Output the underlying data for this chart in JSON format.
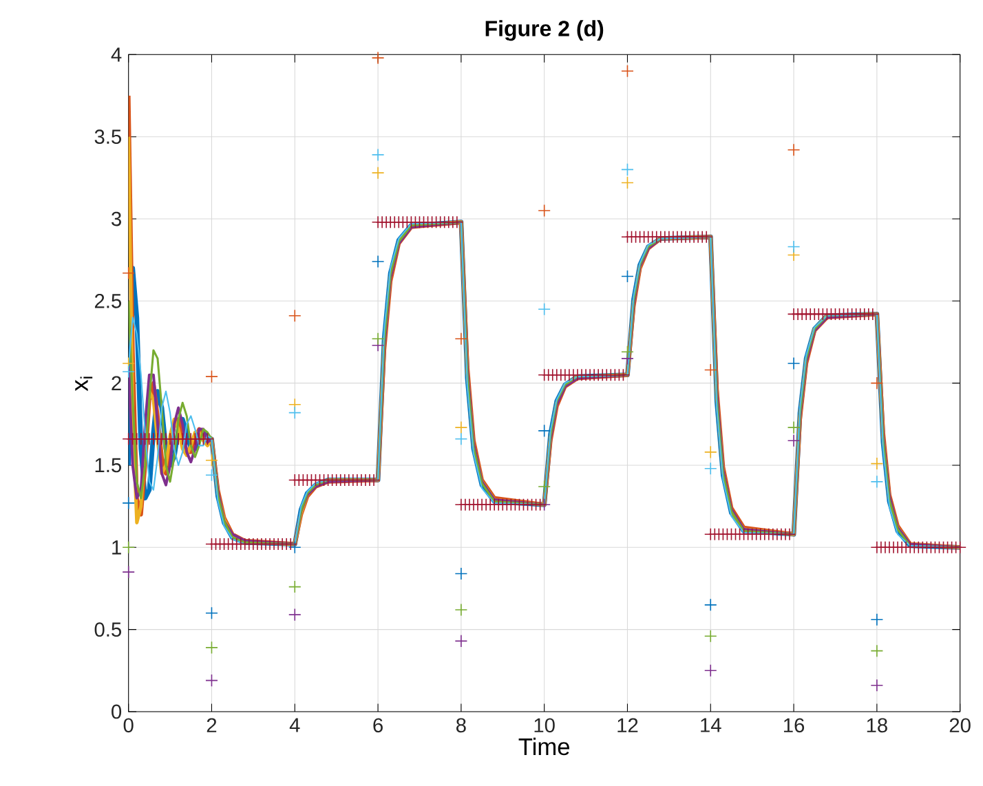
{
  "chart_data": {
    "type": "line",
    "title": "Figure 2 (d)",
    "xlabel": "Time",
    "ylabel": "x$_{i}$",
    "xlim": [
      0,
      20
    ],
    "ylim": [
      0,
      4
    ],
    "xticks": [
      0,
      2,
      4,
      6,
      8,
      10,
      12,
      14,
      16,
      18,
      20
    ],
    "yticks": [
      0,
      0.5,
      1,
      1.5,
      2,
      2.5,
      3,
      3.5,
      4
    ],
    "grid": true,
    "series": [
      {
        "type": "line",
        "marker": "none",
        "color": "#0072bd",
        "x": [
          0,
          0.1,
          0.2,
          0.3,
          0.4,
          0.5,
          0.6,
          0.7,
          0.8,
          0.9,
          1,
          1.1,
          1.2,
          1.3,
          1.4,
          1.5,
          1.6,
          1.7,
          1.8,
          1.9,
          2,
          2.15,
          2.3,
          2.5,
          2.8,
          4,
          4.15,
          4.3,
          4.5,
          4.8,
          6,
          6.15,
          6.3,
          6.5,
          6.8,
          8,
          8.15,
          8.3,
          8.5,
          8.8,
          10,
          10.15,
          10.3,
          10.5,
          10.8,
          12,
          12.15,
          12.3,
          12.5,
          12.8,
          14,
          14.15,
          14.3,
          14.5,
          14.8,
          16,
          16.15,
          16.3,
          16.5,
          16.8,
          18,
          18.15,
          18.3,
          18.5,
          18.8,
          20
        ],
        "values": [
          1.5,
          2.7,
          2.4,
          1.6,
          1.3,
          1.35,
          1.7,
          1.95,
          1.85,
          1.6,
          1.5,
          1.55,
          1.72,
          1.78,
          1.7,
          1.6,
          1.6,
          1.68,
          1.7,
          1.67,
          1.66,
          1.31,
          1.15,
          1.06,
          1.03,
          1.02,
          1.23,
          1.33,
          1.38,
          1.41,
          1.41,
          2.27,
          2.67,
          2.87,
          2.96,
          2.98,
          2.03,
          1.6,
          1.38,
          1.28,
          1.26,
          1.69,
          1.89,
          1.99,
          2.04,
          2.05,
          2.51,
          2.72,
          2.83,
          2.88,
          2.89,
          1.89,
          1.44,
          1.21,
          1.1,
          1.08,
          1.82,
          2.15,
          2.33,
          2.41,
          2.42,
          1.64,
          1.28,
          1.1,
          1.01,
          1.0
        ]
      },
      {
        "marker": "none",
        "color": "#d95319",
        "x": [
          0,
          0.1,
          0.2,
          0.3,
          0.4,
          0.5,
          0.6,
          0.7,
          0.8,
          0.9,
          1,
          1.1,
          1.2,
          1.3,
          1.4,
          1.5,
          1.6,
          1.7,
          1.8,
          1.9,
          2,
          2.15,
          2.3,
          2.5,
          2.8,
          4,
          4.15,
          4.3,
          4.5,
          4.8,
          6,
          6.15,
          6.3,
          6.5,
          6.8,
          8,
          8.15,
          8.3,
          8.5,
          8.8,
          10,
          10.15,
          10.3,
          10.5,
          10.8,
          12,
          12.15,
          12.3,
          12.5,
          12.8,
          14,
          14.15,
          14.3,
          14.5,
          14.8,
          16,
          16.15,
          16.3,
          16.5,
          16.8,
          18,
          18.15,
          18.3,
          18.5,
          18.8,
          20
        ],
        "values": [
          3.75,
          2.2,
          1.3,
          1.2,
          1.5,
          1.9,
          2.0,
          1.8,
          1.55,
          1.45,
          1.58,
          1.75,
          1.78,
          1.68,
          1.58,
          1.58,
          1.66,
          1.72,
          1.68,
          1.63,
          1.66,
          1.35,
          1.18,
          1.08,
          1.04,
          1.02,
          1.2,
          1.31,
          1.37,
          1.4,
          1.41,
          2.2,
          2.62,
          2.85,
          2.95,
          2.98,
          2.1,
          1.65,
          1.41,
          1.3,
          1.26,
          1.65,
          1.86,
          1.98,
          2.03,
          2.05,
          2.47,
          2.7,
          2.82,
          2.88,
          2.89,
          1.96,
          1.49,
          1.24,
          1.12,
          1.08,
          1.78,
          2.12,
          2.32,
          2.4,
          2.42,
          1.7,
          1.32,
          1.13,
          1.02,
          1.0
        ]
      },
      {
        "marker": "none",
        "color": "#edb120",
        "x": [
          0,
          0.1,
          0.2,
          0.3,
          0.4,
          0.5,
          0.6,
          0.7,
          0.8,
          0.9,
          1,
          1.1,
          1.2,
          1.3,
          1.4,
          1.5,
          1.6,
          1.7,
          1.8,
          1.9,
          2,
          2.15,
          2.3,
          2.5,
          2.8,
          4,
          4.15,
          4.3,
          4.5,
          4.8,
          6,
          6.15,
          6.3,
          6.5,
          6.8,
          8,
          8.15,
          8.3,
          8.5,
          8.8,
          10,
          10.15,
          10.3,
          10.5,
          10.8,
          12,
          12.15,
          12.3,
          12.5,
          12.8,
          14,
          14.15,
          14.3,
          14.5,
          14.8,
          16,
          16.15,
          16.3,
          16.5,
          16.8,
          18,
          18.15,
          18.3,
          18.5,
          18.8,
          20
        ],
        "values": [
          3.5,
          1.8,
          1.15,
          1.25,
          1.65,
          1.95,
          1.9,
          1.65,
          1.45,
          1.5,
          1.68,
          1.78,
          1.72,
          1.6,
          1.56,
          1.62,
          1.7,
          1.7,
          1.65,
          1.62,
          1.66,
          1.33,
          1.17,
          1.07,
          1.03,
          1.02,
          1.21,
          1.32,
          1.38,
          1.41,
          1.41,
          2.24,
          2.65,
          2.86,
          2.96,
          2.98,
          2.06,
          1.62,
          1.4,
          1.29,
          1.26,
          1.67,
          1.88,
          1.99,
          2.04,
          2.05,
          2.49,
          2.71,
          2.83,
          2.88,
          2.89,
          1.92,
          1.46,
          1.22,
          1.11,
          1.08,
          1.8,
          2.14,
          2.33,
          2.41,
          2.42,
          1.67,
          1.3,
          1.12,
          1.02,
          1.0
        ]
      },
      {
        "marker": "none",
        "color": "#7e2f8e",
        "x": [
          0,
          0.1,
          0.2,
          0.3,
          0.4,
          0.5,
          0.6,
          0.7,
          0.8,
          0.9,
          1,
          1.1,
          1.2,
          1.3,
          1.4,
          1.5,
          1.6,
          1.7,
          1.8,
          1.9,
          2,
          2.15,
          2.3,
          2.5,
          2.8,
          4,
          4.15,
          4.3,
          4.5,
          4.8,
          6,
          6.15,
          6.3,
          6.5,
          6.8,
          8,
          8.15,
          8.3,
          8.5,
          8.8,
          10,
          10.15,
          10.3,
          10.5,
          10.8,
          12,
          12.15,
          12.3,
          12.5,
          12.8,
          14,
          14.15,
          14.3,
          14.5,
          14.8,
          16,
          16.15,
          16.3,
          16.5,
          16.8,
          18,
          18.15,
          18.3,
          18.5,
          18.8,
          20
        ],
        "values": [
          2.1,
          1.5,
          1.3,
          1.35,
          1.75,
          2.05,
          2.05,
          1.75,
          1.45,
          1.38,
          1.5,
          1.75,
          1.85,
          1.75,
          1.58,
          1.52,
          1.6,
          1.72,
          1.72,
          1.64,
          1.66,
          1.34,
          1.16,
          1.08,
          1.04,
          1.02,
          1.22,
          1.32,
          1.37,
          1.4,
          1.41,
          2.22,
          2.64,
          2.85,
          2.95,
          2.98,
          2.08,
          1.63,
          1.4,
          1.29,
          1.26,
          1.66,
          1.87,
          1.98,
          2.03,
          2.05,
          2.48,
          2.71,
          2.82,
          2.88,
          2.89,
          1.94,
          1.47,
          1.23,
          1.11,
          1.08,
          1.79,
          2.13,
          2.32,
          2.4,
          2.42,
          1.68,
          1.31,
          1.12,
          1.02,
          1.0
        ]
      },
      {
        "marker": "none",
        "color": "#77ac30",
        "x": [
          0,
          0.1,
          0.2,
          0.3,
          0.4,
          0.5,
          0.6,
          0.7,
          0.8,
          0.9,
          1,
          1.1,
          1.2,
          1.3,
          1.4,
          1.5,
          1.6,
          1.7,
          1.8,
          1.9,
          2,
          2.15,
          2.3,
          2.5,
          2.8,
          4,
          4.15,
          4.3,
          4.5,
          4.8,
          6,
          6.15,
          6.3,
          6.5,
          6.8,
          8,
          8.15,
          8.3,
          8.5,
          8.8,
          10,
          10.15,
          10.3,
          10.5,
          10.8,
          12,
          12.15,
          12.3,
          12.5,
          12.8,
          14,
          14.15,
          14.3,
          14.5,
          14.8,
          16,
          16.15,
          16.3,
          16.5,
          16.8,
          18,
          18.15,
          18.3,
          18.5,
          18.8,
          20
        ],
        "values": [
          2.5,
          1.9,
          1.4,
          1.3,
          1.5,
          1.9,
          2.2,
          2.15,
          1.85,
          1.5,
          1.4,
          1.55,
          1.78,
          1.88,
          1.8,
          1.62,
          1.55,
          1.62,
          1.72,
          1.7,
          1.66,
          1.32,
          1.16,
          1.06,
          1.03,
          1.02,
          1.22,
          1.33,
          1.38,
          1.41,
          1.41,
          2.25,
          2.66,
          2.86,
          2.96,
          2.98,
          2.05,
          1.61,
          1.39,
          1.28,
          1.26,
          1.68,
          1.89,
          1.99,
          2.04,
          2.05,
          2.5,
          2.72,
          2.83,
          2.88,
          2.89,
          1.9,
          1.45,
          1.22,
          1.1,
          1.08,
          1.81,
          2.15,
          2.33,
          2.41,
          2.42,
          1.66,
          1.29,
          1.11,
          1.01,
          1.0
        ]
      },
      {
        "marker": "none",
        "color": "#4dbeee",
        "x": [
          0,
          0.1,
          0.2,
          0.3,
          0.4,
          0.5,
          0.6,
          0.7,
          0.8,
          0.9,
          1,
          1.1,
          1.2,
          1.3,
          1.4,
          1.5,
          1.6,
          1.7,
          1.8,
          1.9,
          2,
          2.15,
          2.3,
          2.5,
          2.8,
          4,
          4.15,
          4.3,
          4.5,
          4.8,
          6,
          6.15,
          6.3,
          6.5,
          6.8,
          8,
          8.15,
          8.3,
          8.5,
          8.8,
          10,
          10.15,
          10.3,
          10.5,
          10.8,
          12,
          12.15,
          12.3,
          12.5,
          12.8,
          14,
          14.15,
          14.3,
          14.5,
          14.8,
          16,
          16.15,
          16.3,
          16.5,
          16.8,
          18,
          18.15,
          18.3,
          18.5,
          18.8,
          20
        ],
        "values": [
          2.1,
          2.4,
          2.3,
          2.05,
          1.7,
          1.4,
          1.35,
          1.55,
          1.85,
          1.95,
          1.82,
          1.6,
          1.5,
          1.58,
          1.75,
          1.8,
          1.72,
          1.62,
          1.62,
          1.68,
          1.66,
          1.28,
          1.13,
          1.05,
          1.02,
          1.02,
          1.25,
          1.34,
          1.39,
          1.41,
          1.41,
          2.32,
          2.7,
          2.88,
          2.97,
          2.98,
          1.98,
          1.57,
          1.36,
          1.27,
          1.26,
          1.71,
          1.9,
          2.0,
          2.04,
          2.05,
          2.53,
          2.73,
          2.84,
          2.88,
          2.89,
          1.85,
          1.41,
          1.19,
          1.09,
          1.08,
          1.85,
          2.17,
          2.34,
          2.41,
          2.42,
          1.6,
          1.25,
          1.08,
          1.01,
          1.0
        ]
      },
      {
        "type": "scatter",
        "marker": "cross",
        "color": "#0072bd",
        "x": [
          0,
          2,
          4,
          6,
          8,
          10,
          12,
          14,
          16,
          18
        ],
        "values": [
          1.27,
          0.6,
          1.0,
          2.74,
          0.84,
          1.71,
          2.65,
          0.65,
          2.12,
          0.56
        ]
      },
      {
        "type": "scatter",
        "marker": "cross",
        "color": "#d95319",
        "x": [
          0,
          2,
          4,
          6,
          8,
          10,
          12,
          14,
          16,
          18
        ],
        "values": [
          2.67,
          2.04,
          2.41,
          3.98,
          2.27,
          3.05,
          3.9,
          2.08,
          3.42,
          2.0
        ]
      },
      {
        "type": "scatter",
        "marker": "cross",
        "color": "#edb120",
        "x": [
          0,
          2,
          4,
          6,
          8,
          10,
          12,
          14,
          16,
          18
        ],
        "values": [
          2.12,
          1.53,
          1.87,
          3.28,
          1.73,
          null,
          3.22,
          1.58,
          2.78,
          1.51
        ]
      },
      {
        "type": "scatter",
        "marker": "cross",
        "color": "#7e2f8e",
        "x": [
          0,
          2,
          4,
          6,
          8,
          10,
          12,
          14,
          16,
          18
        ],
        "values": [
          0.85,
          0.19,
          0.59,
          2.23,
          0.43,
          1.26,
          2.15,
          0.25,
          1.65,
          0.16
        ]
      },
      {
        "type": "scatter",
        "marker": "cross",
        "color": "#77ac30",
        "x": [
          0,
          2,
          4,
          6,
          8,
          10,
          12,
          14,
          16,
          18
        ],
        "values": [
          1.0,
          0.39,
          0.76,
          2.27,
          0.62,
          1.37,
          2.19,
          0.46,
          1.73,
          0.37
        ]
      },
      {
        "type": "scatter",
        "marker": "cross",
        "color": "#4dbeee",
        "x": [
          0,
          2,
          4,
          6,
          8,
          10,
          12,
          14,
          16,
          18
        ],
        "values": [
          2.07,
          1.44,
          1.82,
          3.39,
          1.66,
          2.45,
          3.3,
          1.48,
          2.83,
          1.4
        ]
      },
      {
        "type": "scatter",
        "marker": "cross",
        "color": "#a2142f",
        "x": [
          0,
          0.1,
          0.2,
          0.3,
          0.4,
          0.5,
          0.6,
          0.7,
          0.8,
          0.9,
          1,
          1.1,
          1.2,
          1.3,
          1.4,
          1.5,
          1.6,
          1.7,
          1.8,
          1.9,
          2,
          2.1,
          2.2,
          2.3,
          2.4,
          2.5,
          2.6,
          2.7,
          2.8,
          2.9,
          3,
          3.1,
          3.2,
          3.3,
          3.4,
          3.5,
          3.6,
          3.7,
          3.8,
          3.9,
          4,
          4.1,
          4.2,
          4.3,
          4.4,
          4.5,
          4.6,
          4.7,
          4.8,
          4.9,
          5,
          5.1,
          5.2,
          5.3,
          5.4,
          5.5,
          5.6,
          5.7,
          5.8,
          5.9,
          6,
          6.1,
          6.2,
          6.3,
          6.4,
          6.5,
          6.6,
          6.7,
          6.8,
          6.9,
          7,
          7.1,
          7.2,
          7.3,
          7.4,
          7.5,
          7.6,
          7.7,
          7.8,
          7.9,
          8,
          8.1,
          8.2,
          8.3,
          8.4,
          8.5,
          8.6,
          8.7,
          8.8,
          8.9,
          9,
          9.1,
          9.2,
          9.3,
          9.4,
          9.5,
          9.6,
          9.7,
          9.8,
          9.9,
          10,
          10.1,
          10.2,
          10.3,
          10.4,
          10.5,
          10.6,
          10.7,
          10.8,
          10.9,
          11,
          11.1,
          11.2,
          11.3,
          11.4,
          11.5,
          11.6,
          11.7,
          11.8,
          11.9,
          12,
          12.1,
          12.2,
          12.3,
          12.4,
          12.5,
          12.6,
          12.7,
          12.8,
          12.9,
          13,
          13.1,
          13.2,
          13.3,
          13.4,
          13.5,
          13.6,
          13.7,
          13.8,
          13.9,
          14,
          14.1,
          14.2,
          14.3,
          14.4,
          14.5,
          14.6,
          14.7,
          14.8,
          14.9,
          15,
          15.1,
          15.2,
          15.3,
          15.4,
          15.5,
          15.6,
          15.7,
          15.8,
          15.9,
          16,
          16.1,
          16.2,
          16.3,
          16.4,
          16.5,
          16.6,
          16.7,
          16.8,
          16.9,
          17,
          17.1,
          17.2,
          17.3,
          17.4,
          17.5,
          17.6,
          17.7,
          17.8,
          17.9,
          18,
          18.1,
          18.2,
          18.3,
          18.4,
          18.5,
          18.6,
          18.7,
          18.8,
          18.9,
          19,
          19.1,
          19.2,
          19.3,
          19.4,
          19.5,
          19.6,
          19.7,
          19.8,
          19.9,
          20
        ],
        "values": [
          1.66,
          1.66,
          1.66,
          1.66,
          1.66,
          1.66,
          1.66,
          1.66,
          1.66,
          1.66,
          1.66,
          1.66,
          1.66,
          1.66,
          1.66,
          1.66,
          1.66,
          1.66,
          1.66,
          1.66,
          1.02,
          1.02,
          1.02,
          1.02,
          1.02,
          1.02,
          1.02,
          1.02,
          1.02,
          1.02,
          1.02,
          1.02,
          1.02,
          1.02,
          1.02,
          1.02,
          1.02,
          1.02,
          1.02,
          1.02,
          1.41,
          1.41,
          1.41,
          1.41,
          1.41,
          1.41,
          1.41,
          1.41,
          1.41,
          1.41,
          1.41,
          1.41,
          1.41,
          1.41,
          1.41,
          1.41,
          1.41,
          1.41,
          1.41,
          1.41,
          2.98,
          2.98,
          2.98,
          2.98,
          2.98,
          2.98,
          2.98,
          2.98,
          2.98,
          2.98,
          2.98,
          2.98,
          2.98,
          2.98,
          2.98,
          2.98,
          2.98,
          2.98,
          2.98,
          2.98,
          1.26,
          1.26,
          1.26,
          1.26,
          1.26,
          1.26,
          1.26,
          1.26,
          1.26,
          1.26,
          1.26,
          1.26,
          1.26,
          1.26,
          1.26,
          1.26,
          1.26,
          1.26,
          1.26,
          1.26,
          2.05,
          2.05,
          2.05,
          2.05,
          2.05,
          2.05,
          2.05,
          2.05,
          2.05,
          2.05,
          2.05,
          2.05,
          2.05,
          2.05,
          2.05,
          2.05,
          2.05,
          2.05,
          2.05,
          2.05,
          2.89,
          2.89,
          2.89,
          2.89,
          2.89,
          2.89,
          2.89,
          2.89,
          2.89,
          2.89,
          2.89,
          2.89,
          2.89,
          2.89,
          2.89,
          2.89,
          2.89,
          2.89,
          2.89,
          2.89,
          1.08,
          1.08,
          1.08,
          1.08,
          1.08,
          1.08,
          1.08,
          1.08,
          1.08,
          1.08,
          1.08,
          1.08,
          1.08,
          1.08,
          1.08,
          1.08,
          1.08,
          1.08,
          1.08,
          1.08,
          2.42,
          2.42,
          2.42,
          2.42,
          2.42,
          2.42,
          2.42,
          2.42,
          2.42,
          2.42,
          2.42,
          2.42,
          2.42,
          2.42,
          2.42,
          2.42,
          2.42,
          2.42,
          2.42,
          2.42,
          1.0,
          1.0,
          1.0,
          1.0,
          1.0,
          1.0,
          1.0,
          1.0,
          1.0,
          1.0,
          1.0,
          1.0,
          1.0,
          1.0,
          1.0,
          1.0,
          1.0,
          1.0,
          1.0,
          1.0,
          1.0
        ]
      }
    ]
  }
}
